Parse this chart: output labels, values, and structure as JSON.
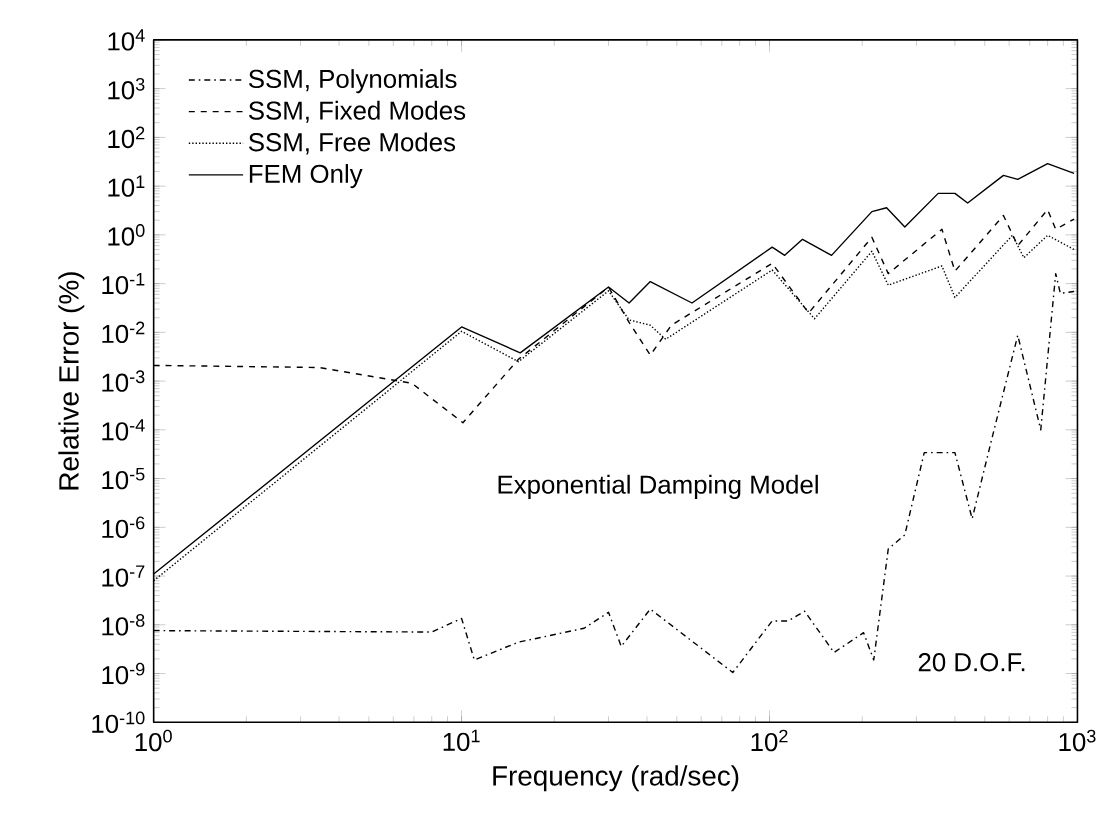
{
  "chart_data": {
    "type": "line",
    "xlabel": "Frequency (rad/sec)",
    "ylabel": "Relative Error (%)",
    "log": "xy",
    "legend": "top left",
    "marker": "none",
    "xlim": [
      1,
      1000
    ],
    "ylim": [
      1e-10,
      10000
    ],
    "xticks": [
      {
        "value": 1,
        "label": "10$^{0}$"
      },
      {
        "value": 10,
        "label": "10$^{1}$"
      },
      {
        "value": 100,
        "label": "10$^{2}$"
      },
      {
        "value": 1000,
        "label": "10$^{3}$"
      }
    ],
    "yticks": [
      {
        "value": 1e-10,
        "label": "10$^{-10}$"
      },
      {
        "value": 1e-09,
        "label": "10$^{-9}$"
      },
      {
        "value": 1e-08,
        "label": "10$^{-8}$"
      },
      {
        "value": 1e-07,
        "label": "10$^{-7}$"
      },
      {
        "value": 1e-06,
        "label": "10$^{-6}$"
      },
      {
        "value": 1e-05,
        "label": "10$^{-5}$"
      },
      {
        "value": 0.0001,
        "label": "10$^{-4}$"
      },
      {
        "value": 0.001,
        "label": "10$^{-3}$"
      },
      {
        "value": 0.01,
        "label": "10$^{-2}$"
      },
      {
        "value": 0.1,
        "label": "10$^{-1}$"
      },
      {
        "value": 1,
        "label": "10$^{0}$"
      },
      {
        "value": 10,
        "label": "10$^{1}$"
      },
      {
        "value": 100,
        "label": "10$^{2}$"
      },
      {
        "value": 1000,
        "label": "10$^{3}$"
      },
      {
        "value": 10000,
        "label": "10$^{4}$"
      }
    ],
    "annotations": [
      "Exponential Damping Model",
      "20 D.O.F."
    ],
    "series": [
      {
        "name": "SSM, Polynomials",
        "color": "#000000",
        "line_style": "dashdot",
        "x": [
          1,
          8,
          10,
          11,
          15.3,
          25,
          30,
          33,
          41,
          76,
          102,
          115,
          130,
          162,
          202,
          218,
          243,
          275,
          318,
          400,
          455,
          527,
          640,
          760,
          850,
          880,
          975
        ],
        "values": [
          7.6e-09,
          7.1e-09,
          1.35e-08,
          1.9e-09,
          4.4e-09,
          8.5e-09,
          1.8e-08,
          3.6e-09,
          2.1e-08,
          1.05e-09,
          1.2e-08,
          1.2e-08,
          1.9e-08,
          2.7e-09,
          6.9e-09,
          1.9e-09,
          3.6e-07,
          7e-07,
          3.4e-05,
          3.4e-05,
          1.5e-06,
          6.5e-05,
          0.0087,
          0.0001,
          0.16,
          0.063,
          0.069
        ]
      },
      {
        "name": "SSM, Fixed Modes",
        "color": "#000000",
        "line_style": "dashed",
        "x": [
          1,
          3.45,
          6.9,
          10.1,
          15.3,
          30,
          35,
          41,
          48,
          102,
          134,
          215,
          243,
          363,
          400,
          575,
          640,
          800,
          850,
          975
        ],
        "values": [
          0.0021,
          0.0019,
          0.0009,
          0.00014,
          0.0028,
          0.085,
          0.016,
          0.0034,
          0.014,
          0.26,
          0.025,
          0.89,
          0.16,
          1.3,
          0.18,
          2.5,
          0.6,
          3.3,
          1.3,
          2.1
        ]
      },
      {
        "name": "SSM, Free Modes",
        "color": "#000000",
        "line_style": "dotted",
        "x": [
          1,
          10,
          15.3,
          30,
          35,
          41,
          46,
          102,
          140,
          215,
          243,
          363,
          400,
          615,
          670,
          800,
          975
        ],
        "values": [
          8e-08,
          0.0105,
          0.0025,
          0.071,
          0.018,
          0.014,
          0.0072,
          0.19,
          0.019,
          0.46,
          0.093,
          0.23,
          0.052,
          0.98,
          0.34,
          0.98,
          0.5
        ]
      },
      {
        "name": "FEM Only",
        "color": "#000000",
        "line_style": "solid",
        "x": [
          1,
          10,
          15.5,
          30,
          35,
          41,
          56,
          102,
          112,
          128,
          159,
          215,
          240,
          275,
          353,
          400,
          440,
          575,
          640,
          800,
          975
        ],
        "values": [
          1.1e-07,
          0.0129,
          0.0038,
          0.085,
          0.04,
          0.11,
          0.04,
          0.56,
          0.38,
          0.81,
          0.38,
          3,
          3.6,
          1.45,
          7.1,
          7.1,
          4.5,
          16.6,
          13.8,
          29,
          18.2
        ]
      }
    ]
  }
}
